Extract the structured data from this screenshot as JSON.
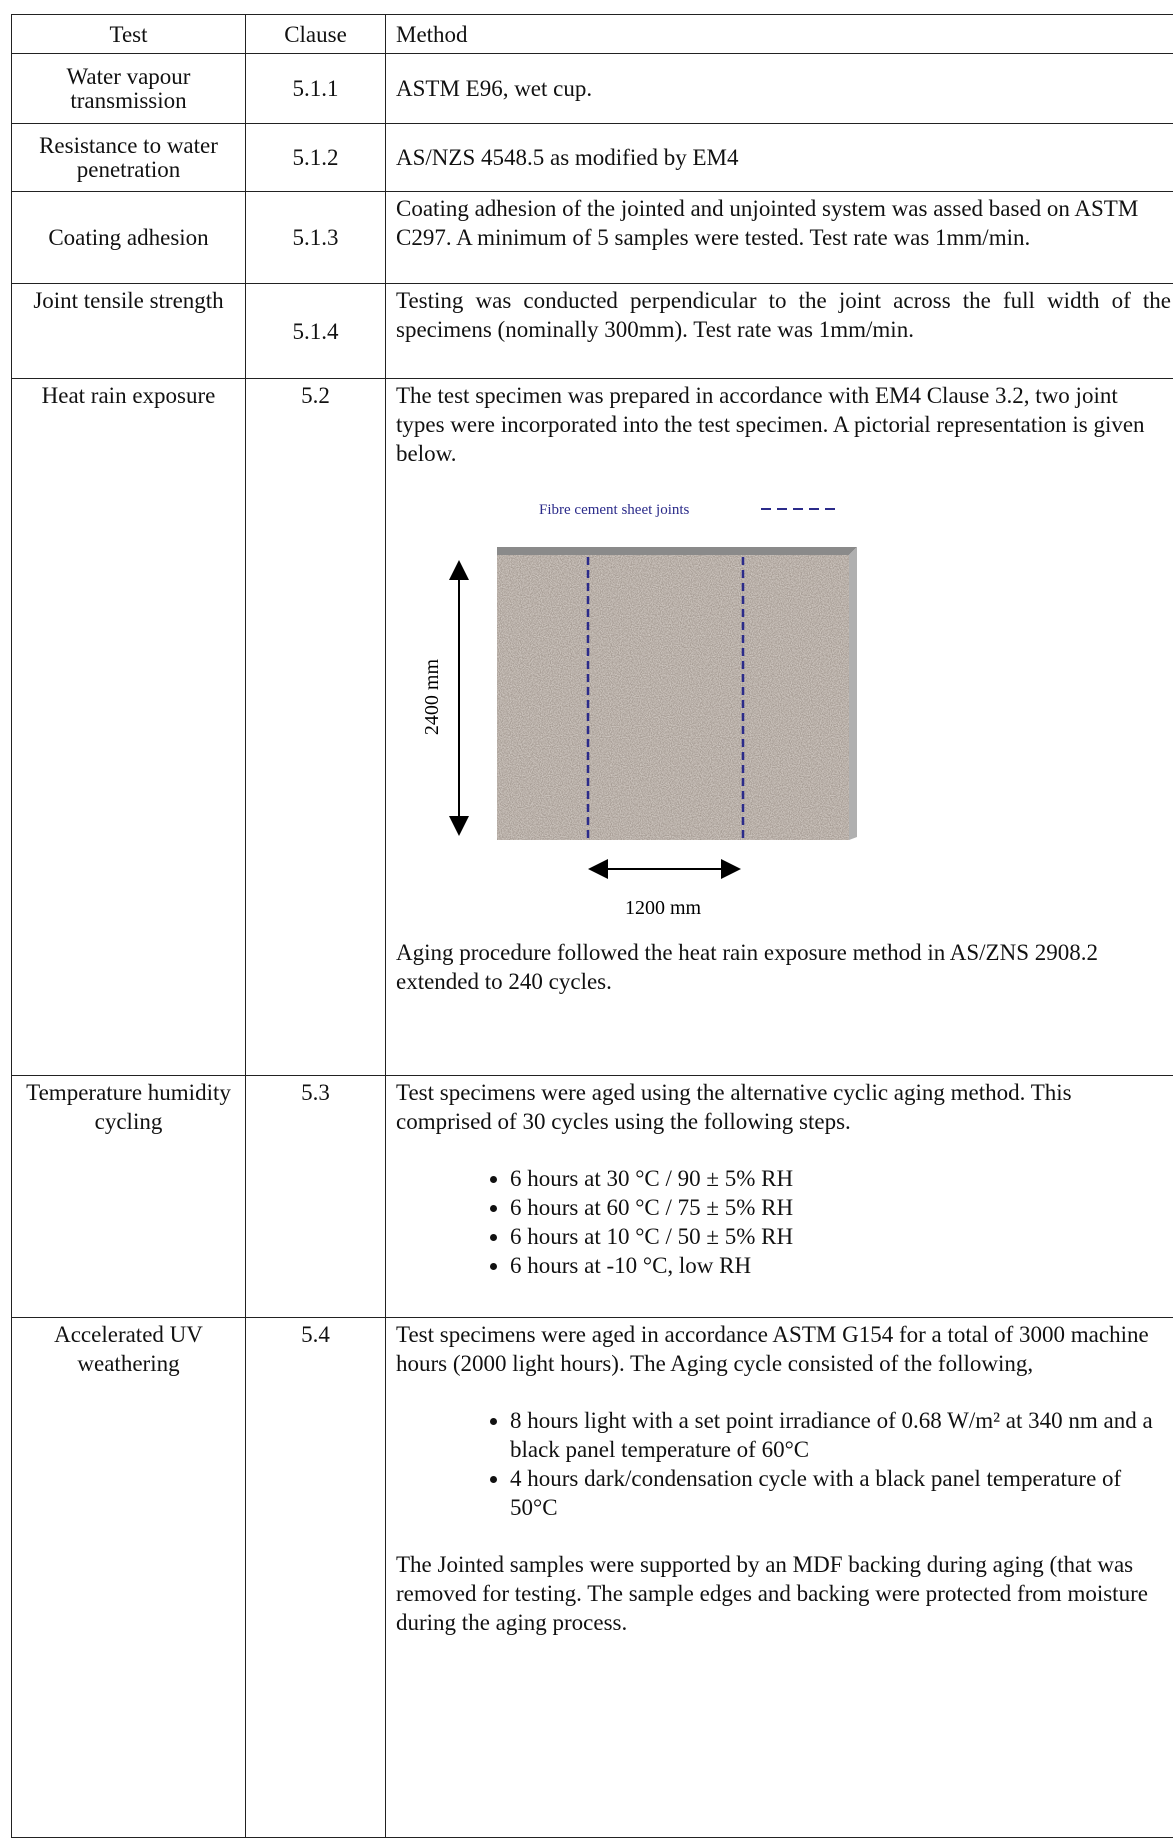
{
  "table": {
    "headers": [
      "Test",
      "Clause",
      "Method"
    ],
    "rows": [
      {
        "test": "Water vapour transmission",
        "clause": "5.1.1",
        "method": [
          "ASTM E96, wet cup."
        ]
      },
      {
        "test": "Resistance to water penetration",
        "clause": "5.1.2",
        "method": [
          "AS/NZS 4548.5 as modified by EM4"
        ]
      },
      {
        "test": "Coating adhesion",
        "clause": "5.1.3",
        "method": [
          "Coating adhesion of the jointed and unjointed system was assed based on ASTM C297. A minimum of 5 samples were tested. Test rate was 1mm/min."
        ]
      },
      {
        "test": "Joint tensile strength",
        "clause": "5.1.4",
        "method": [
          "Testing was conducted perpendicular to the joint across the full width of the specimens (nominally 300mm). Test rate was 1mm/min."
        ]
      },
      {
        "test": "Heat rain exposure",
        "clause": "5.2",
        "method": [
          "The test specimen was prepared in accordance with EM4 Clause 3.2, two joint types were incorporated into the test specimen. A pictorial representation is given below.",
          "Aging procedure followed the heat rain exposure method in AS/ZNS 2908.2 extended to 240 cycles."
        ],
        "figure": {
          "legend": "Fibre cement sheet joints",
          "height_label": "2400 mm",
          "width_label": "1200 mm"
        }
      },
      {
        "test": "Temperature humidity cycling",
        "clause": "5.3",
        "method": [
          "Test specimens were aged using the alternative cyclic aging method. This comprised of 30 cycles using the following steps."
        ],
        "bullets": [
          "6 hours at 30 °C / 90 ± 5% RH",
          "6 hours at 60 °C / 75 ± 5% RH",
          "6 hours at 10 °C / 50 ± 5% RH",
          "6 hours at -10 °C, low RH"
        ]
      },
      {
        "test": "Accelerated UV weathering",
        "clause": "5.4",
        "method": [
          "Test specimens were aged in accordance ASTM G154 for a total of 3000 machine hours (2000 light hours). The Aging cycle consisted of the following,",
          "The Jointed samples were supported by an MDF backing during aging (that was removed for testing. The sample edges and backing were protected from moisture during the aging process."
        ],
        "bullets": [
          "8 hours light with a set point irradiance of 0.68 W/m² at 340 nm and a black panel temperature of 60°C",
          "4 hours dark/condensation cycle with a black panel temperature of 50°C"
        ]
      }
    ]
  }
}
